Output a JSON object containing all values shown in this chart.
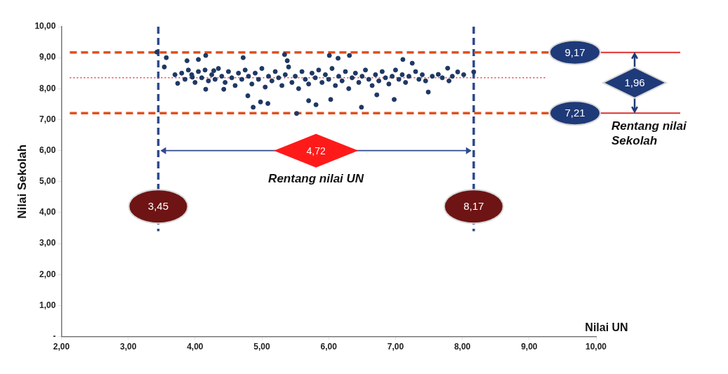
{
  "chart_data": {
    "type": "scatter",
    "xlabel": "Nilai UN",
    "ylabel": "Nilai Sekolah",
    "color": "#1f3864",
    "marker": "circle",
    "grid": false,
    "legend": false,
    "xlim": [
      2,
      10
    ],
    "ylim": [
      0,
      10
    ],
    "xticks": [
      {
        "value": 2,
        "label": "2,00"
      },
      {
        "value": 3,
        "label": "3,00"
      },
      {
        "value": 4,
        "label": "4,00"
      },
      {
        "value": 5,
        "label": "5,00"
      },
      {
        "value": 6,
        "label": "6,00"
      },
      {
        "value": 7,
        "label": "7,00"
      },
      {
        "value": 8,
        "label": "8,00"
      },
      {
        "value": 9,
        "label": "9,00"
      },
      {
        "value": 10,
        "label": "10,00"
      }
    ],
    "yticks": [
      {
        "value": 0,
        "label": "-"
      },
      {
        "value": 1,
        "label": "1,00"
      },
      {
        "value": 2,
        "label": "2,00"
      },
      {
        "value": 3,
        "label": "3,00"
      },
      {
        "value": 4,
        "label": "4,00"
      },
      {
        "value": 5,
        "label": "5,00"
      },
      {
        "value": 6,
        "label": "6,00"
      },
      {
        "value": 7,
        "label": "7,00"
      },
      {
        "value": 8,
        "label": "8,00"
      },
      {
        "value": 9,
        "label": "9,00"
      },
      {
        "value": 10,
        "label": "10,00"
      }
    ],
    "x": [
      3.43,
      3.57,
      3.54,
      3.7,
      3.74,
      3.88,
      4.05,
      4.16,
      4.16,
      3.96,
      4.28,
      4.43,
      4.72,
      4.79,
      4.87,
      4.98,
      5.09,
      5.34,
      5.38,
      5.52,
      5.7,
      5.81,
      6.01,
      6.03,
      6.31,
      6.14,
      6.49,
      6.72,
      6.98,
      7.11,
      7.25,
      7.49,
      7.64,
      7.78,
      7.8,
      7.93,
      8.02,
      8.17,
      3.8,
      3.85,
      3.9,
      3.95,
      4.0,
      4.05,
      4.1,
      4.15,
      4.2,
      4.25,
      4.3,
      4.35,
      4.4,
      4.45,
      4.5,
      4.55,
      4.6,
      4.65,
      4.7,
      4.75,
      4.8,
      4.85,
      4.9,
      4.95,
      5.0,
      5.05,
      5.1,
      5.15,
      5.2,
      5.25,
      5.3,
      5.35,
      5.4,
      5.45,
      5.5,
      5.55,
      5.6,
      5.65,
      5.7,
      5.75,
      5.8,
      5.85,
      5.9,
      5.95,
      6.0,
      6.05,
      6.1,
      6.15,
      6.2,
      6.25,
      6.3,
      6.35,
      6.4,
      6.45,
      6.5,
      6.55,
      6.6,
      6.65,
      6.7,
      6.75,
      6.8,
      6.85,
      6.9,
      6.95,
      7.0,
      7.05,
      7.1,
      7.15,
      7.2,
      7.3,
      7.35,
      7.4,
      7.45,
      7.55,
      7.7,
      7.85
    ],
    "values": [
      9.18,
      9.0,
      8.7,
      8.45,
      8.17,
      8.9,
      8.94,
      9.07,
      7.98,
      8.37,
      8.58,
      7.98,
      9.0,
      7.77,
      7.4,
      7.57,
      7.52,
      9.1,
      8.9,
      7.2,
      7.61,
      7.48,
      9.07,
      7.65,
      9.07,
      8.98,
      7.4,
      7.8,
      7.65,
      8.94,
      8.82,
      7.89,
      8.46,
      8.66,
      8.25,
      8.54,
      8.45,
      8.54,
      8.5,
      8.3,
      8.6,
      8.45,
      8.2,
      8.55,
      8.35,
      8.6,
      8.25,
      8.45,
      8.3,
      8.65,
      8.4,
      8.2,
      8.55,
      8.35,
      8.1,
      8.5,
      8.3,
      8.6,
      8.4,
      8.15,
      8.5,
      8.3,
      8.65,
      8.05,
      8.4,
      8.25,
      8.55,
      8.35,
      8.1,
      8.45,
      8.7,
      8.2,
      8.4,
      8.0,
      8.55,
      8.3,
      8.15,
      8.5,
      8.35,
      8.6,
      8.2,
      8.45,
      8.3,
      8.65,
      8.1,
      8.4,
      8.25,
      8.55,
      8.0,
      8.35,
      8.5,
      8.2,
      8.4,
      8.6,
      8.3,
      8.1,
      8.45,
      8.25,
      8.55,
      8.35,
      8.15,
      8.4,
      8.6,
      8.3,
      8.45,
      8.2,
      8.4,
      8.55,
      8.3,
      8.45,
      8.25,
      8.4,
      8.35,
      8.4
    ],
    "ref_lines": [
      {
        "axis": "x",
        "value": 3.45,
        "label": "3,45",
        "color": "#2e4a8c",
        "line_style": "dashed"
      },
      {
        "axis": "x",
        "value": 8.17,
        "label": "8,17",
        "color": "#2e4a8c",
        "line_style": "dashed"
      },
      {
        "axis": "y",
        "value": 9.17,
        "label": "9,17",
        "color": "#e0501e",
        "line_style": "dashed"
      },
      {
        "axis": "y",
        "value": 7.21,
        "label": "7,21",
        "color": "#e0501e",
        "line_style": "dashed"
      },
      {
        "axis": "y",
        "value": 8.35,
        "color": "#f03c3c",
        "line_style": "dotted"
      }
    ],
    "annotations": [
      "4,72",
      "Rentang nilai UN",
      "1,96",
      "Rentang nilai Sekolah"
    ]
  }
}
